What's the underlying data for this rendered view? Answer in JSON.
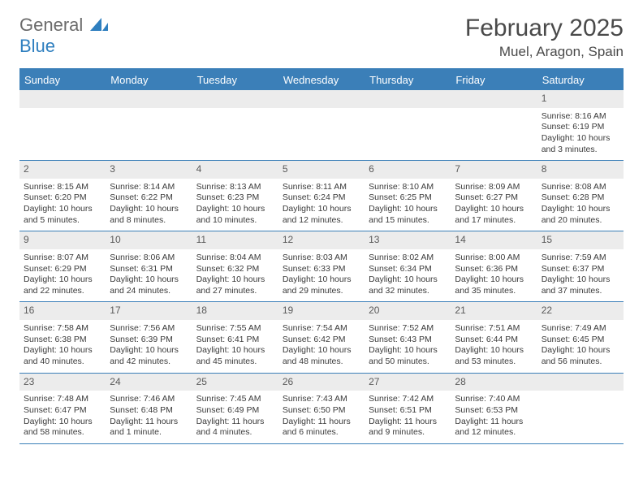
{
  "logo": {
    "word1": "General",
    "word2": "Blue"
  },
  "title": "February 2025",
  "location": "Muel, Aragon, Spain",
  "colors": {
    "header_bg": "#3b7fb8",
    "header_text": "#ffffff",
    "daynum_bg": "#ececec",
    "border": "#3b7fb8"
  },
  "day_names": [
    "Sunday",
    "Monday",
    "Tuesday",
    "Wednesday",
    "Thursday",
    "Friday",
    "Saturday"
  ],
  "weeks": [
    {
      "nums": [
        "",
        "",
        "",
        "",
        "",
        "",
        "1"
      ],
      "cells": [
        null,
        null,
        null,
        null,
        null,
        null,
        {
          "sr": "Sunrise: 8:16 AM",
          "ss": "Sunset: 6:19 PM",
          "d1": "Daylight: 10 hours",
          "d2": "and 3 minutes."
        }
      ]
    },
    {
      "nums": [
        "2",
        "3",
        "4",
        "5",
        "6",
        "7",
        "8"
      ],
      "cells": [
        {
          "sr": "Sunrise: 8:15 AM",
          "ss": "Sunset: 6:20 PM",
          "d1": "Daylight: 10 hours",
          "d2": "and 5 minutes."
        },
        {
          "sr": "Sunrise: 8:14 AM",
          "ss": "Sunset: 6:22 PM",
          "d1": "Daylight: 10 hours",
          "d2": "and 8 minutes."
        },
        {
          "sr": "Sunrise: 8:13 AM",
          "ss": "Sunset: 6:23 PM",
          "d1": "Daylight: 10 hours",
          "d2": "and 10 minutes."
        },
        {
          "sr": "Sunrise: 8:11 AM",
          "ss": "Sunset: 6:24 PM",
          "d1": "Daylight: 10 hours",
          "d2": "and 12 minutes."
        },
        {
          "sr": "Sunrise: 8:10 AM",
          "ss": "Sunset: 6:25 PM",
          "d1": "Daylight: 10 hours",
          "d2": "and 15 minutes."
        },
        {
          "sr": "Sunrise: 8:09 AM",
          "ss": "Sunset: 6:27 PM",
          "d1": "Daylight: 10 hours",
          "d2": "and 17 minutes."
        },
        {
          "sr": "Sunrise: 8:08 AM",
          "ss": "Sunset: 6:28 PM",
          "d1": "Daylight: 10 hours",
          "d2": "and 20 minutes."
        }
      ]
    },
    {
      "nums": [
        "9",
        "10",
        "11",
        "12",
        "13",
        "14",
        "15"
      ],
      "cells": [
        {
          "sr": "Sunrise: 8:07 AM",
          "ss": "Sunset: 6:29 PM",
          "d1": "Daylight: 10 hours",
          "d2": "and 22 minutes."
        },
        {
          "sr": "Sunrise: 8:06 AM",
          "ss": "Sunset: 6:31 PM",
          "d1": "Daylight: 10 hours",
          "d2": "and 24 minutes."
        },
        {
          "sr": "Sunrise: 8:04 AM",
          "ss": "Sunset: 6:32 PM",
          "d1": "Daylight: 10 hours",
          "d2": "and 27 minutes."
        },
        {
          "sr": "Sunrise: 8:03 AM",
          "ss": "Sunset: 6:33 PM",
          "d1": "Daylight: 10 hours",
          "d2": "and 29 minutes."
        },
        {
          "sr": "Sunrise: 8:02 AM",
          "ss": "Sunset: 6:34 PM",
          "d1": "Daylight: 10 hours",
          "d2": "and 32 minutes."
        },
        {
          "sr": "Sunrise: 8:00 AM",
          "ss": "Sunset: 6:36 PM",
          "d1": "Daylight: 10 hours",
          "d2": "and 35 minutes."
        },
        {
          "sr": "Sunrise: 7:59 AM",
          "ss": "Sunset: 6:37 PM",
          "d1": "Daylight: 10 hours",
          "d2": "and 37 minutes."
        }
      ]
    },
    {
      "nums": [
        "16",
        "17",
        "18",
        "19",
        "20",
        "21",
        "22"
      ],
      "cells": [
        {
          "sr": "Sunrise: 7:58 AM",
          "ss": "Sunset: 6:38 PM",
          "d1": "Daylight: 10 hours",
          "d2": "and 40 minutes."
        },
        {
          "sr": "Sunrise: 7:56 AM",
          "ss": "Sunset: 6:39 PM",
          "d1": "Daylight: 10 hours",
          "d2": "and 42 minutes."
        },
        {
          "sr": "Sunrise: 7:55 AM",
          "ss": "Sunset: 6:41 PM",
          "d1": "Daylight: 10 hours",
          "d2": "and 45 minutes."
        },
        {
          "sr": "Sunrise: 7:54 AM",
          "ss": "Sunset: 6:42 PM",
          "d1": "Daylight: 10 hours",
          "d2": "and 48 minutes."
        },
        {
          "sr": "Sunrise: 7:52 AM",
          "ss": "Sunset: 6:43 PM",
          "d1": "Daylight: 10 hours",
          "d2": "and 50 minutes."
        },
        {
          "sr": "Sunrise: 7:51 AM",
          "ss": "Sunset: 6:44 PM",
          "d1": "Daylight: 10 hours",
          "d2": "and 53 minutes."
        },
        {
          "sr": "Sunrise: 7:49 AM",
          "ss": "Sunset: 6:45 PM",
          "d1": "Daylight: 10 hours",
          "d2": "and 56 minutes."
        }
      ]
    },
    {
      "nums": [
        "23",
        "24",
        "25",
        "26",
        "27",
        "28",
        ""
      ],
      "cells": [
        {
          "sr": "Sunrise: 7:48 AM",
          "ss": "Sunset: 6:47 PM",
          "d1": "Daylight: 10 hours",
          "d2": "and 58 minutes."
        },
        {
          "sr": "Sunrise: 7:46 AM",
          "ss": "Sunset: 6:48 PM",
          "d1": "Daylight: 11 hours",
          "d2": "and 1 minute."
        },
        {
          "sr": "Sunrise: 7:45 AM",
          "ss": "Sunset: 6:49 PM",
          "d1": "Daylight: 11 hours",
          "d2": "and 4 minutes."
        },
        {
          "sr": "Sunrise: 7:43 AM",
          "ss": "Sunset: 6:50 PM",
          "d1": "Daylight: 11 hours",
          "d2": "and 6 minutes."
        },
        {
          "sr": "Sunrise: 7:42 AM",
          "ss": "Sunset: 6:51 PM",
          "d1": "Daylight: 11 hours",
          "d2": "and 9 minutes."
        },
        {
          "sr": "Sunrise: 7:40 AM",
          "ss": "Sunset: 6:53 PM",
          "d1": "Daylight: 11 hours",
          "d2": "and 12 minutes."
        },
        null
      ]
    }
  ]
}
